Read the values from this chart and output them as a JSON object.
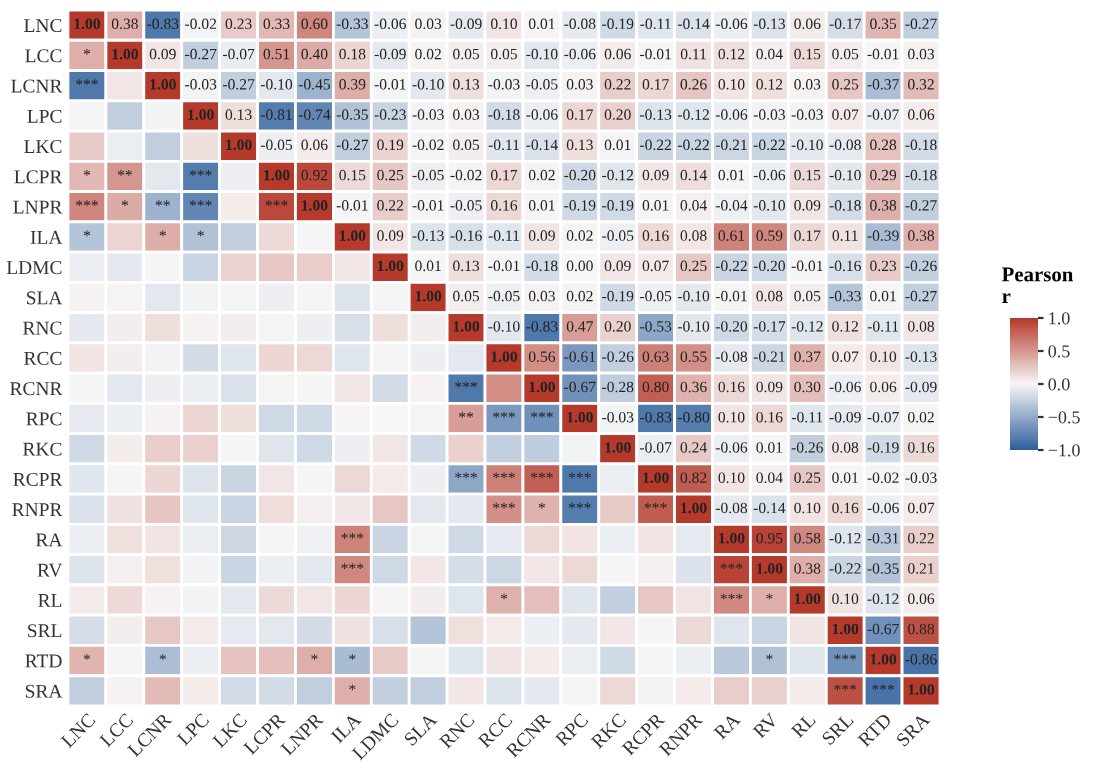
{
  "chart_data": {
    "type": "heatmap",
    "clabel": "Pearson\nr",
    "categories": [
      "LNC",
      "LCC",
      "LCNR",
      "LPC",
      "LKC",
      "LCPR",
      "LNPR",
      "ILA",
      "LDMC",
      "SLA",
      "RNC",
      "RCC",
      "RCNR",
      "RPC",
      "RKC",
      "RCPR",
      "RNPR",
      "RA",
      "RV",
      "RL",
      "SRL",
      "RTD",
      "SRA"
    ],
    "y_categories": [
      "LNC",
      "LCC",
      "LCNR",
      "LPC",
      "LKC",
      "LCPR",
      "LNPR",
      "ILA",
      "LDMC",
      "SLA",
      "RNC",
      "RCC",
      "RCNR",
      "RPC",
      "RKC",
      "RCPR",
      "RNPR",
      "RA",
      "RV",
      "RL",
      "SRL",
      "RTD",
      "SRA"
    ],
    "clim": [
      -1,
      1
    ],
    "cticks": [
      {
        "value": -1,
        "label": "−1.0"
      },
      {
        "value": -0.5,
        "label": "−0.5"
      },
      {
        "value": 0,
        "label": "0.0"
      },
      {
        "value": 0.5,
        "label": "0.5"
      },
      {
        "value": 1,
        "label": "1.0"
      }
    ],
    "cells": [
      [
        1.0,
        0.38,
        -0.83,
        -0.02,
        0.23,
        0.33,
        0.6,
        -0.33,
        -0.06,
        0.03,
        -0.09,
        0.1,
        0.01,
        -0.08,
        -0.19,
        -0.11,
        -0.14,
        -0.06,
        -0.13,
        0.06,
        -0.17,
        0.35,
        -0.27
      ],
      [
        0.38,
        1.0,
        0.09,
        -0.27,
        -0.07,
        0.51,
        0.4,
        0.18,
        -0.09,
        0.02,
        0.05,
        0.05,
        -0.1,
        -0.06,
        0.06,
        -0.01,
        0.11,
        0.12,
        0.04,
        0.15,
        0.05,
        -0.01,
        0.03
      ],
      [
        -0.83,
        0.09,
        1.0,
        -0.03,
        -0.27,
        -0.1,
        -0.45,
        0.39,
        -0.01,
        -0.1,
        0.13,
        -0.03,
        -0.05,
        0.03,
        0.22,
        0.17,
        0.26,
        0.1,
        0.12,
        0.03,
        0.25,
        -0.37,
        0.32
      ],
      [
        -0.02,
        -0.27,
        -0.03,
        1.0,
        0.13,
        -0.81,
        -0.74,
        -0.35,
        -0.23,
        -0.03,
        0.03,
        -0.18,
        -0.06,
        0.17,
        0.2,
        -0.13,
        -0.12,
        -0.06,
        -0.03,
        -0.03,
        0.07,
        -0.07,
        0.06
      ],
      [
        0.23,
        -0.07,
        -0.27,
        0.13,
        1.0,
        -0.05,
        0.06,
        -0.27,
        0.19,
        -0.02,
        0.05,
        -0.11,
        -0.14,
        0.13,
        0.01,
        -0.22,
        -0.22,
        -0.21,
        -0.22,
        -0.1,
        -0.08,
        0.28,
        -0.18
      ],
      [
        0.33,
        0.51,
        -0.1,
        -0.81,
        -0.05,
        1.0,
        0.92,
        0.15,
        0.25,
        -0.05,
        -0.02,
        0.17,
        0.02,
        -0.2,
        -0.12,
        0.09,
        0.14,
        0.01,
        -0.06,
        0.15,
        -0.1,
        0.29,
        -0.18
      ],
      [
        0.6,
        0.4,
        -0.45,
        -0.74,
        0.06,
        0.92,
        1.0,
        -0.01,
        0.22,
        -0.01,
        -0.05,
        0.16,
        0.01,
        -0.19,
        -0.19,
        0.01,
        0.04,
        -0.04,
        -0.1,
        0.09,
        -0.18,
        0.38,
        -0.27
      ],
      [
        -0.33,
        0.18,
        0.39,
        -0.35,
        -0.27,
        0.15,
        -0.01,
        1.0,
        0.09,
        -0.13,
        -0.16,
        -0.11,
        0.09,
        0.02,
        -0.05,
        0.16,
        0.08,
        0.61,
        0.59,
        0.17,
        0.11,
        -0.39,
        0.38
      ],
      [
        -0.06,
        -0.09,
        -0.01,
        -0.23,
        0.19,
        0.25,
        0.22,
        0.09,
        1.0,
        0.01,
        0.13,
        -0.01,
        -0.18,
        0.0,
        0.09,
        0.07,
        0.25,
        -0.22,
        -0.2,
        -0.01,
        -0.16,
        0.23,
        -0.26
      ],
      [
        0.03,
        0.02,
        -0.1,
        -0.03,
        -0.02,
        -0.05,
        -0.01,
        -0.13,
        0.01,
        1.0,
        0.05,
        -0.05,
        0.03,
        0.02,
        -0.19,
        -0.05,
        -0.1,
        -0.01,
        0.08,
        0.05,
        -0.33,
        0.01,
        -0.27
      ],
      [
        -0.09,
        0.05,
        0.13,
        0.03,
        0.05,
        -0.02,
        -0.05,
        -0.16,
        0.13,
        0.05,
        1.0,
        -0.1,
        -0.83,
        0.47,
        0.2,
        -0.53,
        -0.1,
        -0.2,
        -0.17,
        -0.12,
        0.12,
        -0.11,
        0.08
      ],
      [
        0.1,
        0.05,
        -0.03,
        -0.18,
        -0.11,
        0.17,
        0.16,
        -0.11,
        -0.01,
        -0.05,
        -0.1,
        1.0,
        0.56,
        -0.61,
        -0.26,
        0.63,
        0.55,
        -0.08,
        -0.21,
        0.37,
        0.07,
        0.1,
        -0.13
      ],
      [
        0.01,
        -0.1,
        -0.05,
        -0.06,
        -0.14,
        0.02,
        0.01,
        0.09,
        -0.18,
        0.03,
        -0.83,
        0.56,
        1.0,
        -0.67,
        -0.28,
        0.8,
        0.36,
        0.16,
        0.09,
        0.3,
        -0.06,
        0.06,
        -0.09
      ],
      [
        -0.08,
        -0.06,
        0.03,
        0.17,
        0.13,
        -0.2,
        -0.19,
        0.02,
        0.0,
        0.02,
        0.47,
        -0.61,
        -0.67,
        1.0,
        -0.03,
        -0.83,
        -0.8,
        0.1,
        0.16,
        -0.11,
        -0.09,
        -0.07,
        0.02
      ],
      [
        -0.19,
        0.06,
        0.22,
        0.2,
        0.01,
        -0.12,
        -0.19,
        -0.05,
        0.09,
        -0.19,
        0.2,
        -0.26,
        -0.28,
        -0.03,
        1.0,
        -0.07,
        0.24,
        -0.06,
        0.01,
        -0.26,
        0.08,
        -0.19,
        0.16
      ],
      [
        -0.11,
        -0.01,
        0.17,
        -0.13,
        -0.22,
        0.09,
        0.01,
        0.16,
        0.07,
        -0.05,
        -0.53,
        0.63,
        0.8,
        -0.83,
        -0.07,
        1.0,
        0.82,
        0.1,
        0.04,
        0.25,
        0.01,
        -0.02,
        -0.03
      ],
      [
        -0.14,
        0.11,
        0.26,
        -0.12,
        -0.22,
        0.14,
        0.04,
        0.08,
        0.25,
        -0.1,
        -0.1,
        0.55,
        0.36,
        -0.8,
        0.24,
        0.82,
        1.0,
        -0.08,
        -0.14,
        0.1,
        0.16,
        -0.06,
        0.07
      ],
      [
        -0.06,
        0.12,
        0.1,
        -0.06,
        -0.21,
        0.01,
        -0.04,
        0.61,
        -0.22,
        -0.01,
        -0.2,
        -0.08,
        0.16,
        0.1,
        -0.06,
        0.1,
        -0.08,
        1.0,
        0.95,
        0.58,
        -0.12,
        -0.31,
        0.22
      ],
      [
        -0.13,
        0.04,
        0.12,
        -0.03,
        -0.22,
        -0.06,
        -0.1,
        0.59,
        -0.2,
        0.08,
        -0.17,
        -0.21,
        0.09,
        0.16,
        0.01,
        0.04,
        -0.14,
        0.95,
        1.0,
        0.38,
        -0.22,
        -0.35,
        0.21
      ],
      [
        0.06,
        0.15,
        0.03,
        -0.03,
        -0.1,
        0.15,
        0.09,
        0.17,
        -0.01,
        0.05,
        -0.12,
        0.37,
        0.3,
        -0.11,
        -0.26,
        0.25,
        0.1,
        0.58,
        0.38,
        1.0,
        0.1,
        -0.12,
        0.06
      ],
      [
        -0.17,
        0.05,
        0.25,
        0.07,
        -0.08,
        -0.1,
        -0.18,
        0.11,
        -0.16,
        -0.33,
        0.12,
        0.07,
        -0.06,
        -0.09,
        0.08,
        0.01,
        0.16,
        -0.12,
        -0.22,
        0.1,
        1.0,
        -0.67,
        0.88
      ],
      [
        0.35,
        -0.01,
        -0.37,
        -0.07,
        0.28,
        0.29,
        0.38,
        -0.39,
        0.23,
        0.01,
        -0.11,
        0.1,
        0.06,
        -0.07,
        -0.19,
        -0.02,
        -0.06,
        -0.31,
        -0.35,
        -0.12,
        -0.67,
        1.0,
        -0.86
      ],
      [
        -0.27,
        0.03,
        0.32,
        0.06,
        -0.18,
        -0.18,
        -0.27,
        0.38,
        -0.26,
        -0.27,
        0.08,
        -0.13,
        -0.09,
        0.02,
        0.16,
        -0.03,
        0.07,
        0.22,
        0.21,
        0.06,
        0.88,
        -0.86,
        1.0
      ]
    ],
    "cell_labels": [
      [
        "1.00",
        "0.38",
        "-0.83",
        "-0.02",
        "0.23",
        "0.33",
        "0.60",
        "-0.33",
        "-0.06",
        "0.03",
        "-0.09",
        "0.10",
        "0.01",
        "-0.08",
        "-0.19",
        "-0.11",
        "-0.14",
        "-0.06",
        "-0.13",
        "0.06",
        "-0.17",
        "0.35",
        "-0.27"
      ],
      [
        "*",
        "1.00",
        "0.09",
        "-0.27",
        "-0.07",
        "0.51",
        "0.40",
        "0.18",
        "-0.09",
        "0.02",
        "0.05",
        "0.05",
        "-0.10",
        "-0.06",
        "0.06",
        "-0.01",
        "0.11",
        "0.12",
        "0.04",
        "0.15",
        "0.05",
        "-0.01",
        "0.03"
      ],
      [
        "***",
        null,
        "1.00",
        "-0.03",
        "-0.27",
        "-0.10",
        "-0.45",
        "0.39",
        "-0.01",
        "-0.10",
        "0.13",
        "-0.03",
        "-0.05",
        "0.03",
        "0.22",
        "0.17",
        "0.26",
        "0.10",
        "0.12",
        "0.03",
        "0.25",
        "-0.37",
        "0.32"
      ],
      [
        null,
        null,
        null,
        "1.00",
        "0.13",
        "-0.81",
        "-0.74",
        "-0.35",
        "-0.23",
        "-0.03",
        "0.03",
        "-0.18",
        "-0.06",
        "0.17",
        "0.20",
        "-0.13",
        "-0.12",
        "-0.06",
        "-0.03",
        "-0.03",
        "0.07",
        "-0.07",
        "0.06"
      ],
      [
        null,
        null,
        null,
        null,
        "1.00",
        "-0.05",
        "0.06",
        "-0.27",
        "0.19",
        "-0.02",
        "0.05",
        "-0.11",
        "-0.14",
        "0.13",
        "0.01",
        "-0.22",
        "-0.22",
        "-0.21",
        "-0.22",
        "-0.10",
        "-0.08",
        "0.28",
        "-0.18"
      ],
      [
        "*",
        "**",
        null,
        "***",
        null,
        "1.00",
        "0.92",
        "0.15",
        "0.25",
        "-0.05",
        "-0.02",
        "0.17",
        "0.02",
        "-0.20",
        "-0.12",
        "0.09",
        "0.14",
        "0.01",
        "-0.06",
        "0.15",
        "-0.10",
        "0.29",
        "-0.18"
      ],
      [
        "***",
        "*",
        "**",
        "***",
        null,
        "***",
        "1.00",
        "-0.01",
        "0.22",
        "-0.01",
        "-0.05",
        "0.16",
        "0.01",
        "-0.19",
        "-0.19",
        "0.01",
        "0.04",
        "-0.04",
        "-0.10",
        "0.09",
        "-0.18",
        "0.38",
        "-0.27"
      ],
      [
        "*",
        null,
        "*",
        "*",
        null,
        null,
        null,
        "1.00",
        "0.09",
        "-0.13",
        "-0.16",
        "-0.11",
        "0.09",
        "0.02",
        "-0.05",
        "0.16",
        "0.08",
        "0.61",
        "0.59",
        "0.17",
        "0.11",
        "-0.39",
        "0.38"
      ],
      [
        null,
        null,
        null,
        null,
        null,
        null,
        null,
        null,
        "1.00",
        "0.01",
        "0.13",
        "-0.01",
        "-0.18",
        "0.00",
        "0.09",
        "0.07",
        "0.25",
        "-0.22",
        "-0.20",
        "-0.01",
        "-0.16",
        "0.23",
        "-0.26"
      ],
      [
        null,
        null,
        null,
        null,
        null,
        null,
        null,
        null,
        null,
        "1.00",
        "0.05",
        "-0.05",
        "0.03",
        "0.02",
        "-0.19",
        "-0.05",
        "-0.10",
        "-0.01",
        "0.08",
        "0.05",
        "-0.33",
        "0.01",
        "-0.27"
      ],
      [
        null,
        null,
        null,
        null,
        null,
        null,
        null,
        null,
        null,
        null,
        "1.00",
        "-0.10",
        "-0.83",
        "0.47",
        "0.20",
        "-0.53",
        "-0.10",
        "-0.20",
        "-0.17",
        "-0.12",
        "0.12",
        "-0.11",
        "0.08"
      ],
      [
        null,
        null,
        null,
        null,
        null,
        null,
        null,
        null,
        null,
        null,
        null,
        "1.00",
        "0.56",
        "-0.61",
        "-0.26",
        "0.63",
        "0.55",
        "-0.08",
        "-0.21",
        "0.37",
        "0.07",
        "0.10",
        "-0.13"
      ],
      [
        null,
        null,
        null,
        null,
        null,
        null,
        null,
        null,
        null,
        null,
        "***",
        null,
        "1.00",
        "-0.67",
        "-0.28",
        "0.80",
        "0.36",
        "0.16",
        "0.09",
        "0.30",
        "-0.06",
        "0.06",
        "-0.09"
      ],
      [
        null,
        null,
        null,
        null,
        null,
        null,
        null,
        null,
        null,
        null,
        "**",
        "***",
        "***",
        "1.00",
        "-0.03",
        "-0.83",
        "-0.80",
        "0.10",
        "0.16",
        "-0.11",
        "-0.09",
        "-0.07",
        "0.02"
      ],
      [
        null,
        null,
        null,
        null,
        null,
        null,
        null,
        null,
        null,
        null,
        null,
        null,
        null,
        null,
        "1.00",
        "-0.07",
        "0.24",
        "-0.06",
        "0.01",
        "-0.26",
        "0.08",
        "-0.19",
        "0.16"
      ],
      [
        null,
        null,
        null,
        null,
        null,
        null,
        null,
        null,
        null,
        null,
        "***",
        "***",
        "***",
        "***",
        null,
        "1.00",
        "0.82",
        "0.10",
        "0.04",
        "0.25",
        "0.01",
        "-0.02",
        "-0.03"
      ],
      [
        null,
        null,
        null,
        null,
        null,
        null,
        null,
        null,
        null,
        null,
        null,
        "***",
        "*",
        "***",
        null,
        "***",
        "1.00",
        "-0.08",
        "-0.14",
        "0.10",
        "0.16",
        "-0.06",
        "0.07"
      ],
      [
        null,
        null,
        null,
        null,
        null,
        null,
        null,
        "***",
        null,
        null,
        null,
        null,
        null,
        null,
        null,
        null,
        null,
        "1.00",
        "0.95",
        "0.58",
        "-0.12",
        "-0.31",
        "0.22"
      ],
      [
        null,
        null,
        null,
        null,
        null,
        null,
        null,
        "***",
        null,
        null,
        null,
        null,
        null,
        null,
        null,
        null,
        null,
        "***",
        "1.00",
        "0.38",
        "-0.22",
        "-0.35",
        "0.21"
      ],
      [
        null,
        null,
        null,
        null,
        null,
        null,
        null,
        null,
        null,
        null,
        null,
        "*",
        null,
        null,
        null,
        null,
        null,
        "***",
        "*",
        "1.00",
        "0.10",
        "-0.12",
        "0.06"
      ],
      [
        null,
        null,
        null,
        null,
        null,
        null,
        null,
        null,
        null,
        null,
        null,
        null,
        null,
        null,
        null,
        null,
        null,
        null,
        null,
        null,
        "1.00",
        "-0.67",
        "0.88"
      ],
      [
        "*",
        null,
        "*",
        null,
        null,
        null,
        "*",
        "*",
        null,
        null,
        null,
        null,
        null,
        null,
        null,
        null,
        null,
        null,
        "*",
        null,
        "***",
        "1.00",
        "-0.86"
      ],
      [
        null,
        null,
        null,
        null,
        null,
        null,
        null,
        "*",
        null,
        null,
        null,
        null,
        null,
        null,
        null,
        null,
        null,
        null,
        null,
        null,
        "***",
        "***",
        "1.00"
      ]
    ]
  }
}
